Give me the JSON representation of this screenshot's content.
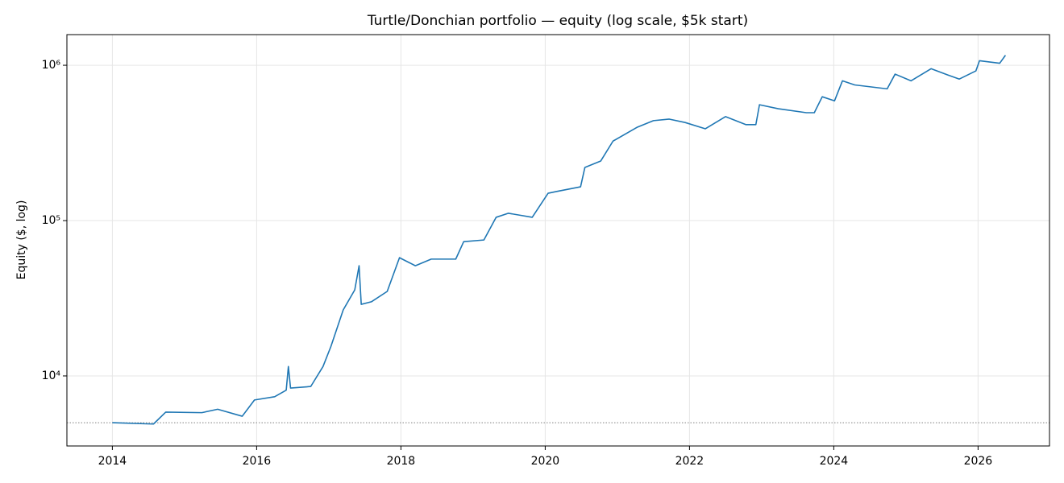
{
  "chart_data": {
    "type": "line",
    "title": "Turtle/Donchian portfolio — equity (log scale, $5k start)",
    "y_label": "Equity ($, log)",
    "log_y": true,
    "grid": true,
    "x": [
      2014.0,
      2014.57,
      2014.74,
      2015.24,
      2015.46,
      2015.8,
      2015.97,
      2016.25,
      2016.41,
      2016.44,
      2016.47,
      2016.75,
      2016.92,
      2017.03,
      2017.2,
      2017.36,
      2017.42,
      2017.45,
      2017.59,
      2017.81,
      2017.98,
      2018.2,
      2018.42,
      2018.76,
      2018.87,
      2019.15,
      2019.32,
      2019.49,
      2019.82,
      2020.04,
      2020.16,
      2020.49,
      2020.55,
      2020.77,
      2020.94,
      2021.27,
      2021.5,
      2021.72,
      2021.94,
      2022.22,
      2022.5,
      2022.78,
      2022.92,
      2022.97,
      2023.23,
      2023.62,
      2023.73,
      2023.84,
      2024.01,
      2024.12,
      2024.29,
      2024.74,
      2024.85,
      2025.07,
      2025.35,
      2025.58,
      2025.74,
      2025.97,
      2026.02,
      2026.3,
      2026.38
    ],
    "series": [
      {
        "name": "Equity",
        "color": "#1f77b4",
        "values": [
          5000,
          4900,
          5850,
          5800,
          6100,
          5500,
          7000,
          7350,
          8100,
          11500,
          8350,
          8550,
          11500,
          15500,
          26600,
          35800,
          51200,
          28900,
          30000,
          35000,
          57700,
          51200,
          56500,
          56500,
          73200,
          75000,
          105000,
          111500,
          105000,
          150000,
          154000,
          165000,
          220000,
          242000,
          325000,
          398000,
          440000,
          450000,
          428000,
          390000,
          467000,
          415000,
          415000,
          557000,
          525000,
          495000,
          495000,
          627000,
          590000,
          794000,
          747000,
          705000,
          877000,
          794000,
          950000,
          866000,
          815000,
          920000,
          1070000,
          1030000,
          1160000
        ]
      }
    ],
    "baseline": 5000,
    "baseline_color": "#808080",
    "xlim": [
      2013.37,
      2026.99
    ],
    "xticks": [
      2014,
      2016,
      2018,
      2020,
      2022,
      2024,
      2026
    ],
    "ylim": [
      3540,
      1575000
    ],
    "yticks": [
      {
        "value": 10000,
        "label": "10⁴"
      },
      {
        "value": 100000,
        "label": "10⁵"
      },
      {
        "value": 1000000,
        "label": "10⁶"
      }
    ]
  }
}
